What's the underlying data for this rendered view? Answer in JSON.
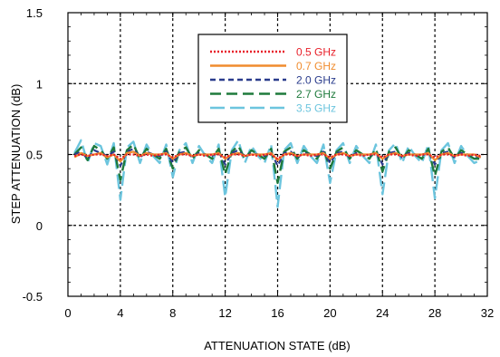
{
  "chart_data": {
    "type": "line",
    "title": "",
    "xlabel": "ATTENUATION STATE (dB)",
    "ylabel": "STEP ATTENUATION (dB)",
    "xlim": [
      0,
      32
    ],
    "ylim": [
      -0.5,
      1.5
    ],
    "xticks": [
      0,
      4,
      8,
      12,
      16,
      20,
      24,
      28,
      32
    ],
    "yticks": [
      -0.5,
      0,
      0.5,
      1,
      1.5
    ],
    "ytick_labels": [
      "-0.5",
      "0",
      "0.5",
      "1",
      "1.5"
    ],
    "grid": true,
    "legend_position": "top-center",
    "x": [
      0.5,
      1,
      1.5,
      2,
      2.5,
      3,
      3.5,
      4,
      4.5,
      5,
      5.5,
      6,
      6.5,
      7,
      7.5,
      8,
      8.5,
      9,
      9.5,
      10,
      10.5,
      11,
      11.5,
      12,
      12.5,
      13,
      13.5,
      14,
      14.5,
      15,
      15.5,
      16,
      16.5,
      17,
      17.5,
      18,
      18.5,
      19,
      19.5,
      20,
      20.5,
      21,
      21.5,
      22,
      22.5,
      23,
      23.5,
      24,
      24.5,
      25,
      25.5,
      26,
      26.5,
      27,
      27.5,
      28,
      28.5,
      29,
      29.5,
      30,
      30.5,
      31,
      31.5
    ],
    "series": [
      {
        "name": "0.5 GHz",
        "color": "#e8202a",
        "dash": "2,2",
        "width": 2.2,
        "values": [
          0.49,
          0.5,
          0.49,
          0.5,
          0.5,
          0.49,
          0.5,
          0.47,
          0.5,
          0.5,
          0.49,
          0.5,
          0.49,
          0.5,
          0.5,
          0.48,
          0.5,
          0.5,
          0.49,
          0.5,
          0.49,
          0.5,
          0.5,
          0.48,
          0.5,
          0.5,
          0.49,
          0.5,
          0.49,
          0.5,
          0.5,
          0.47,
          0.5,
          0.5,
          0.49,
          0.5,
          0.49,
          0.5,
          0.5,
          0.48,
          0.5,
          0.5,
          0.49,
          0.5,
          0.49,
          0.5,
          0.5,
          0.48,
          0.5,
          0.5,
          0.49,
          0.5,
          0.49,
          0.5,
          0.5,
          0.48,
          0.5,
          0.5,
          0.49,
          0.5,
          0.49,
          0.5,
          0.49
        ]
      },
      {
        "name": "0.7 GHz",
        "color": "#f08c2e",
        "dash": "",
        "width": 2.2,
        "values": [
          0.48,
          0.51,
          0.49,
          0.5,
          0.51,
          0.48,
          0.5,
          0.45,
          0.51,
          0.52,
          0.49,
          0.51,
          0.5,
          0.5,
          0.51,
          0.47,
          0.5,
          0.51,
          0.49,
          0.5,
          0.5,
          0.5,
          0.51,
          0.47,
          0.5,
          0.51,
          0.49,
          0.5,
          0.5,
          0.5,
          0.51,
          0.46,
          0.5,
          0.51,
          0.49,
          0.5,
          0.5,
          0.5,
          0.51,
          0.47,
          0.5,
          0.51,
          0.49,
          0.5,
          0.5,
          0.5,
          0.51,
          0.47,
          0.5,
          0.51,
          0.49,
          0.5,
          0.5,
          0.5,
          0.51,
          0.46,
          0.5,
          0.51,
          0.49,
          0.5,
          0.5,
          0.5,
          0.48
        ]
      },
      {
        "name": "2.0 GHz",
        "color": "#2a3c8c",
        "dash": "6,4",
        "width": 2.2,
        "values": [
          0.5,
          0.52,
          0.47,
          0.53,
          0.51,
          0.49,
          0.52,
          0.42,
          0.52,
          0.54,
          0.48,
          0.52,
          0.5,
          0.49,
          0.52,
          0.44,
          0.51,
          0.52,
          0.48,
          0.51,
          0.5,
          0.49,
          0.52,
          0.43,
          0.51,
          0.53,
          0.48,
          0.51,
          0.5,
          0.49,
          0.52,
          0.42,
          0.51,
          0.52,
          0.48,
          0.51,
          0.5,
          0.49,
          0.52,
          0.44,
          0.51,
          0.52,
          0.48,
          0.51,
          0.5,
          0.49,
          0.52,
          0.43,
          0.51,
          0.52,
          0.48,
          0.51,
          0.5,
          0.49,
          0.52,
          0.43,
          0.51,
          0.52,
          0.48,
          0.51,
          0.5,
          0.49,
          0.48
        ]
      },
      {
        "name": "2.7 GHz",
        "color": "#1e7a3c",
        "dash": "12,6",
        "width": 2.4,
        "values": [
          0.5,
          0.55,
          0.46,
          0.56,
          0.53,
          0.47,
          0.55,
          0.32,
          0.53,
          0.57,
          0.47,
          0.54,
          0.5,
          0.47,
          0.54,
          0.4,
          0.52,
          0.55,
          0.47,
          0.53,
          0.5,
          0.47,
          0.54,
          0.36,
          0.52,
          0.56,
          0.47,
          0.53,
          0.5,
          0.47,
          0.54,
          0.3,
          0.52,
          0.55,
          0.47,
          0.53,
          0.5,
          0.47,
          0.54,
          0.4,
          0.52,
          0.55,
          0.47,
          0.53,
          0.5,
          0.47,
          0.54,
          0.38,
          0.52,
          0.55,
          0.47,
          0.53,
          0.5,
          0.47,
          0.54,
          0.35,
          0.52,
          0.55,
          0.47,
          0.53,
          0.5,
          0.47,
          0.47
        ]
      },
      {
        "name": "3.5 GHz",
        "color": "#6cc5de",
        "dash": "16,6",
        "width": 2.4,
        "values": [
          0.51,
          0.6,
          0.44,
          0.58,
          0.56,
          0.43,
          0.58,
          0.18,
          0.55,
          0.59,
          0.44,
          0.57,
          0.49,
          0.44,
          0.57,
          0.34,
          0.53,
          0.58,
          0.44,
          0.56,
          0.49,
          0.44,
          0.57,
          0.2,
          0.53,
          0.6,
          0.44,
          0.56,
          0.49,
          0.44,
          0.57,
          0.13,
          0.53,
          0.58,
          0.44,
          0.56,
          0.49,
          0.44,
          0.57,
          0.3,
          0.53,
          0.58,
          0.44,
          0.56,
          0.49,
          0.44,
          0.57,
          0.22,
          0.53,
          0.58,
          0.44,
          0.56,
          0.49,
          0.44,
          0.57,
          0.19,
          0.53,
          0.58,
          0.44,
          0.56,
          0.49,
          0.44,
          0.46
        ]
      }
    ]
  }
}
